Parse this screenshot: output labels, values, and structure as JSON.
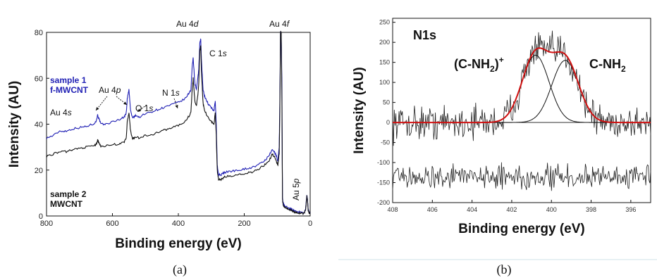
{
  "chart_data": [
    {
      "type": "line",
      "panel_label": "(a)",
      "xlabel": "Binding energy (eV)",
      "ylabel": "Intensity (AU)",
      "xlim": [
        800,
        0
      ],
      "ylim": [
        0,
        80
      ],
      "x_ticks": [
        "800",
        "600",
        "400",
        "200",
        "0"
      ],
      "y_ticks": [
        "0",
        "20",
        "40",
        "60",
        "80"
      ],
      "annotations": [
        {
          "id": "au4s",
          "text": "Au 4s",
          "x": 760,
          "y": 46
        },
        {
          "id": "au4p",
          "text": "Au 4p",
          "x": 640,
          "y": 55
        },
        {
          "id": "o1s",
          "text": "O 1s",
          "x": 520,
          "y": 47
        },
        {
          "id": "n1s",
          "text": "N 1s",
          "x": 400,
          "y": 54
        },
        {
          "id": "au4d",
          "text": "Au 4d",
          "x": 345,
          "y": 78
        },
        {
          "id": "c1s",
          "text": "C 1s",
          "x": 280,
          "y": 68
        },
        {
          "id": "au4f",
          "text": "Au 4f",
          "x": 90,
          "y": 78
        },
        {
          "id": "au5p",
          "text": "Au 5p",
          "x": 57,
          "y": 7
        }
      ],
      "series": [
        {
          "name": "sample 1\nf-MWCNT",
          "legend_lines": [
            "sample 1",
            "f-MWCNT"
          ],
          "color": "#1f1fb4",
          "x": [
            800,
            780,
            760,
            740,
            720,
            700,
            680,
            660,
            650,
            645,
            640,
            635,
            620,
            600,
            580,
            565,
            558,
            555,
            550,
            545,
            540,
            535,
            530,
            520,
            500,
            480,
            460,
            440,
            420,
            400,
            380,
            370,
            362,
            358,
            355,
            350,
            345,
            340,
            338,
            335,
            332,
            330,
            325,
            320,
            310,
            300,
            292,
            288,
            285,
            282,
            278,
            270,
            260,
            240,
            220,
            200,
            180,
            160,
            140,
            125,
            115,
            105,
            98,
            94,
            92,
            90,
            88,
            86,
            84,
            82,
            78,
            72,
            66,
            60,
            56,
            50,
            40,
            30,
            20,
            14,
            12,
            10,
            8,
            6,
            4,
            2,
            0
          ],
          "y": [
            34,
            35,
            37,
            37,
            38,
            38.5,
            39,
            40,
            41,
            44,
            42,
            40,
            40,
            41,
            42,
            43,
            45,
            51,
            55,
            46,
            43,
            43,
            44,
            43,
            44.5,
            45.5,
            46.5,
            47.5,
            48.5,
            49.5,
            51,
            53,
            55,
            65,
            69,
            58,
            55,
            61,
            64,
            75,
            77,
            68,
            55,
            52,
            49,
            47,
            46,
            50,
            40,
            22,
            18,
            18,
            19,
            19.5,
            20,
            20.5,
            21,
            22,
            24,
            26,
            29,
            27,
            24,
            30,
            50,
            80,
            80,
            60,
            8,
            5.5,
            4.5,
            4,
            3.5,
            3,
            2.8,
            2.4,
            2,
            1.6,
            1.3,
            3,
            6,
            9,
            7,
            3,
            2,
            1.5,
            1
          ]
        },
        {
          "name": "sample 2\nMWCNT",
          "legend_lines": [
            "sample 2",
            "MWCNT"
          ],
          "color": "#111111",
          "x": [
            800,
            780,
            760,
            740,
            720,
            700,
            680,
            660,
            650,
            645,
            640,
            635,
            620,
            600,
            580,
            565,
            558,
            555,
            550,
            545,
            540,
            535,
            530,
            520,
            500,
            480,
            460,
            440,
            420,
            400,
            380,
            370,
            362,
            358,
            355,
            350,
            345,
            340,
            338,
            335,
            332,
            330,
            325,
            320,
            310,
            300,
            292,
            288,
            285,
            282,
            278,
            270,
            260,
            240,
            220,
            200,
            180,
            160,
            140,
            125,
            115,
            105,
            98,
            94,
            92,
            90,
            88,
            86,
            84,
            82,
            78,
            72,
            66,
            60,
            56,
            50,
            40,
            30,
            20,
            14,
            12,
            10,
            8,
            6,
            4,
            2,
            0
          ],
          "y": [
            26,
            27,
            28,
            28,
            29,
            29.5,
            30,
            30.5,
            31,
            33,
            31.5,
            30.5,
            30.5,
            31,
            31.5,
            32,
            34,
            41,
            45,
            37,
            34,
            34,
            34.5,
            34,
            35,
            35.5,
            36.5,
            37.5,
            38.5,
            39.5,
            41,
            43,
            45,
            55,
            60,
            50,
            48,
            54,
            58,
            72,
            74,
            63,
            49,
            46,
            43,
            41,
            40,
            45,
            35,
            20,
            16,
            16,
            17,
            17.5,
            18,
            18.5,
            19,
            20,
            22,
            24,
            27,
            25,
            22,
            27,
            45,
            80,
            80,
            55,
            7,
            5,
            4,
            3.5,
            3,
            2.6,
            2.2,
            1.8,
            1.5,
            1.2,
            1,
            2.5,
            5.5,
            9,
            6.5,
            2.5,
            1.5,
            1.2,
            1
          ]
        }
      ]
    },
    {
      "type": "line",
      "panel_label": "(b)",
      "title": "N1s",
      "xlabel": "Binding energy (eV)",
      "ylabel": "Intensity (AU)",
      "xlim": [
        408,
        395
      ],
      "ylim": [
        -200,
        260
      ],
      "x_ticks": [
        "408",
        "406",
        "404",
        "402",
        "400",
        "398",
        "396"
      ],
      "y_ticks": [
        "-200",
        "-150",
        "-100",
        "-50",
        "0",
        "50",
        "100",
        "150",
        "200",
        "250"
      ],
      "annotations": [
        {
          "id": "cnh2plus",
          "text": "(C-NH2)+",
          "main": "(C-NH",
          "sub": "2",
          "tail": ")",
          "sup": "+",
          "x": 403.6,
          "y": 170
        },
        {
          "id": "cnh2",
          "text": "C-NH2",
          "main": "C-NH",
          "sub": "2",
          "x": 397.9,
          "y": 170
        }
      ],
      "fit_components": [
        {
          "id": "peak_cnh2plus",
          "center": 400.8,
          "fwhm": 1.6,
          "amplitude": 168,
          "color": "#111111"
        },
        {
          "id": "peak_cnh2",
          "center": 399.3,
          "fwhm": 1.6,
          "amplitude": 155,
          "color": "#111111"
        }
      ],
      "envelope_color": "#d01010",
      "raw_noise": 32,
      "residual_offset": -135,
      "residual_noise": 22
    }
  ]
}
